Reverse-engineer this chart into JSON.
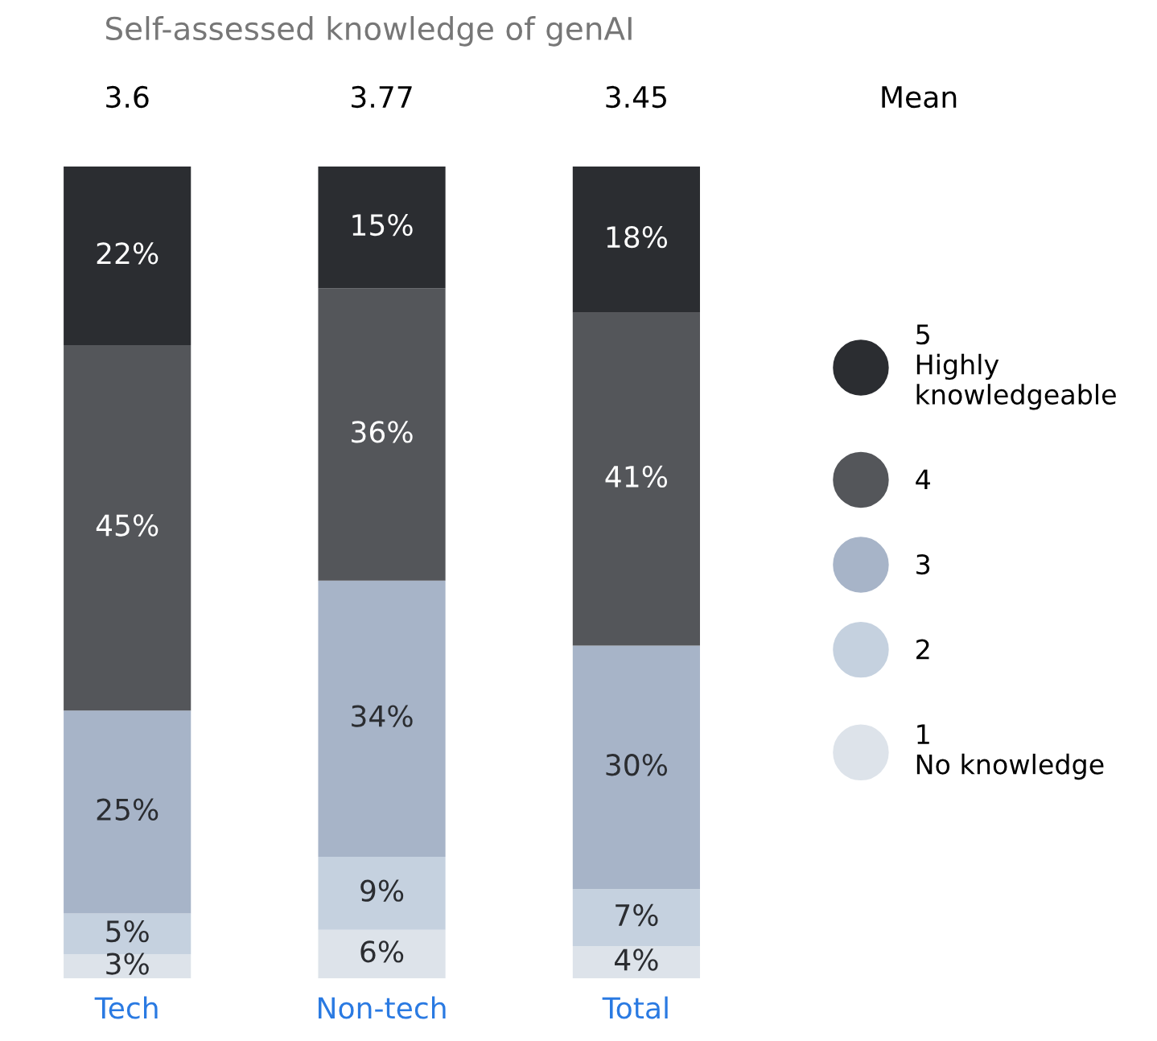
{
  "chart_data": {
    "type": "bar",
    "title": "Self-assessed knowledge of genAI",
    "stacked": true,
    "legend": "right",
    "categories": [
      "Tech",
      "Non-tech",
      "Total"
    ],
    "series": [
      {
        "name": "1\nNo knowledge",
        "color": "#dde3ea",
        "values": [
          3,
          6,
          4
        ],
        "value_labels": [
          "3%",
          "6%",
          "4%"
        ]
      },
      {
        "name": "2",
        "color": "#c5d1df",
        "values": [
          5,
          9,
          7
        ],
        "value_labels": [
          "5%",
          "9%",
          "7%"
        ]
      },
      {
        "name": "3",
        "color": "#a7b4c8",
        "values": [
          25,
          34,
          30
        ],
        "value_labels": [
          "25%",
          "34%",
          "30%"
        ]
      },
      {
        "name": "4",
        "color": "#54565a",
        "values": [
          45,
          36,
          41
        ],
        "value_labels": [
          "45%",
          "36%",
          "41%"
        ]
      },
      {
        "name": "5\nHighly\nknowledgeable",
        "color": "#2b2d31",
        "values": [
          22,
          15,
          18
        ],
        "value_labels": [
          "22%",
          "15%",
          "18%"
        ]
      }
    ],
    "annotations": [
      "3.6",
      "3.77",
      "3.45",
      "Mean"
    ]
  }
}
